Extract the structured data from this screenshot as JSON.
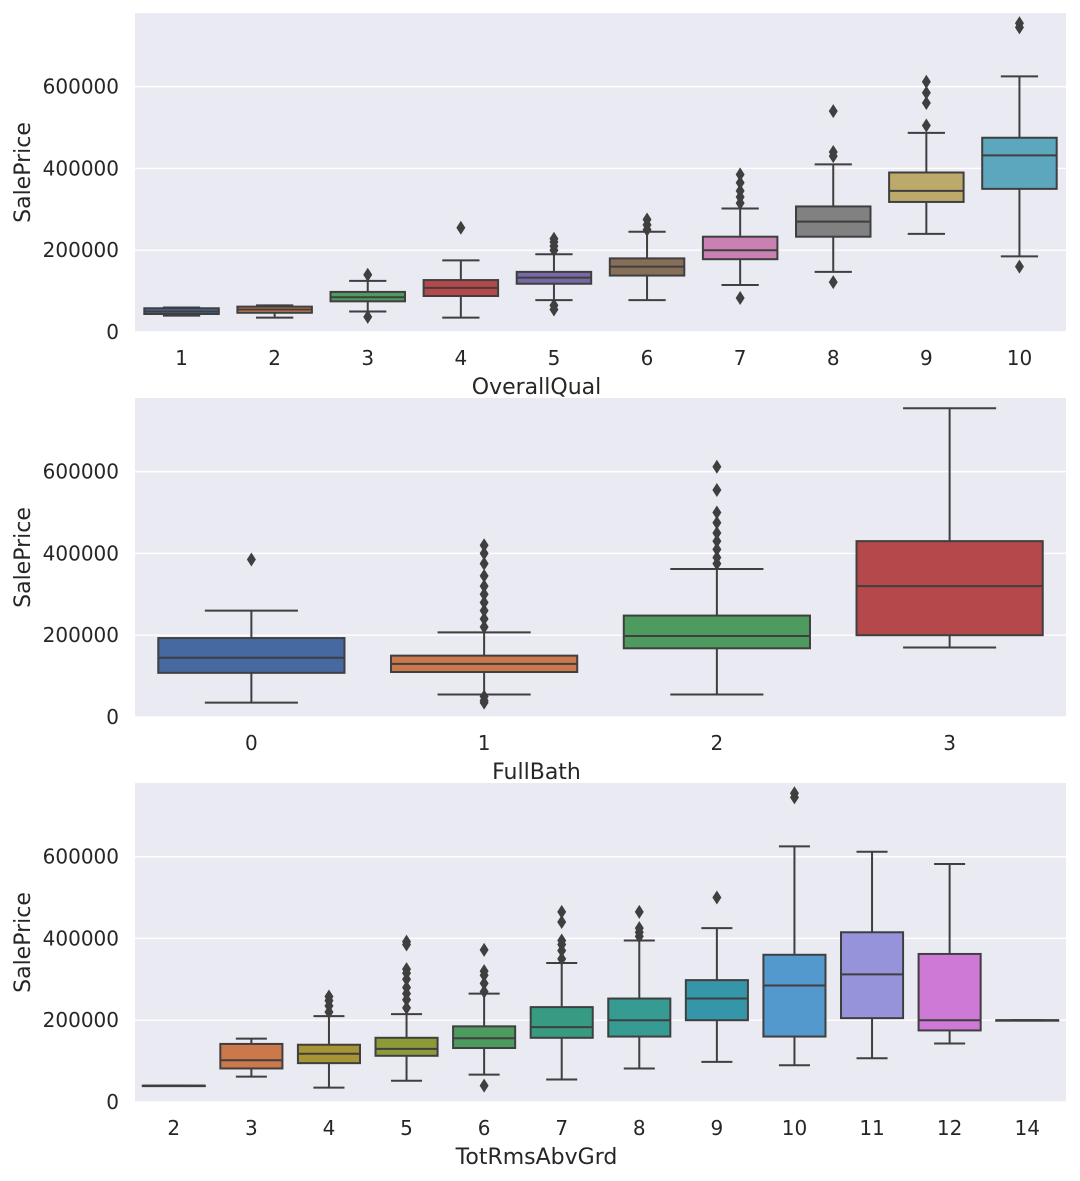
{
  "chart_data": [
    {
      "type": "box",
      "xlabel": "OverallQual",
      "ylabel": "SalePrice",
      "ylim": [
        0,
        780000
      ],
      "yticks": [
        0,
        200000,
        400000,
        600000
      ],
      "grid": true,
      "categories": [
        "1",
        "2",
        "3",
        "4",
        "5",
        "6",
        "7",
        "8",
        "9",
        "10"
      ],
      "colors": [
        "#4c72b0",
        "#dd8452",
        "#55a868",
        "#c44e52",
        "#8172b3",
        "#937860",
        "#da8bc3",
        "#8c8c8c",
        "#ccb974",
        "#64b5cd"
      ],
      "boxes": [
        {
          "min": 40000,
          "q1": 44000,
          "median": 50000,
          "q3": 58000,
          "max": 60000,
          "fliers": []
        },
        {
          "min": 35000,
          "q1": 47000,
          "median": 55000,
          "q3": 62000,
          "max": 65000,
          "fliers": []
        },
        {
          "min": 50000,
          "q1": 75000,
          "median": 85000,
          "q3": 98000,
          "max": 125000,
          "fliers": [
            140000,
            37000
          ]
        },
        {
          "min": 35000,
          "q1": 88000,
          "median": 108000,
          "q3": 127000,
          "max": 175000,
          "fliers": [
            255000
          ]
        },
        {
          "min": 78000,
          "q1": 118000,
          "median": 133000,
          "q3": 147000,
          "max": 190000,
          "fliers": [
            200000,
            210000,
            220000,
            228000,
            65000,
            55000
          ]
        },
        {
          "min": 78000,
          "q1": 138000,
          "median": 160000,
          "q3": 180000,
          "max": 245000,
          "fliers": [
            250000,
            262000,
            275000
          ]
        },
        {
          "min": 115000,
          "q1": 178000,
          "median": 200000,
          "q3": 233000,
          "max": 302000,
          "fliers": [
            315000,
            330000,
            345000,
            365000,
            385000,
            83000
          ]
        },
        {
          "min": 147000,
          "q1": 233000,
          "median": 270000,
          "q3": 307000,
          "max": 410000,
          "fliers": [
            430000,
            440000,
            540000,
            122000
          ]
        },
        {
          "min": 240000,
          "q1": 318000,
          "median": 345000,
          "q3": 390000,
          "max": 487000,
          "fliers": [
            505000,
            560000,
            585000,
            612000
          ]
        },
        {
          "min": 185000,
          "q1": 350000,
          "median": 432000,
          "q3": 475000,
          "max": 625000,
          "fliers": [
            745000,
            755000,
            160000
          ]
        }
      ]
    },
    {
      "type": "box",
      "xlabel": "FullBath",
      "ylabel": "SalePrice",
      "ylim": [
        0,
        780000
      ],
      "yticks": [
        0,
        200000,
        400000,
        600000
      ],
      "grid": true,
      "categories": [
        "0",
        "1",
        "2",
        "3"
      ],
      "colors": [
        "#4c72b0",
        "#dd8452",
        "#55a868",
        "#c44e52"
      ],
      "boxes": [
        {
          "min": 35000,
          "q1": 108000,
          "median": 145000,
          "q3": 193000,
          "max": 260000,
          "fliers": [
            385000
          ]
        },
        {
          "min": 55000,
          "q1": 110000,
          "median": 130000,
          "q3": 150000,
          "max": 207000,
          "fliers": [
            220000,
            240000,
            260000,
            280000,
            300000,
            320000,
            345000,
            375000,
            400000,
            420000,
            50000,
            40000,
            35000
          ]
        },
        {
          "min": 55000,
          "q1": 168000,
          "median": 198000,
          "q3": 248000,
          "max": 362000,
          "fliers": [
            375000,
            390000,
            410000,
            430000,
            450000,
            475000,
            500000,
            555000,
            612000
          ]
        },
        {
          "min": 170000,
          "q1": 200000,
          "median": 320000,
          "q3": 430000,
          "max": 755000,
          "fliers": []
        }
      ]
    },
    {
      "type": "box",
      "xlabel": "TotRmsAbvGrd",
      "ylabel": "SalePrice",
      "ylim": [
        0,
        780000
      ],
      "yticks": [
        0,
        200000,
        400000,
        600000
      ],
      "grid": true,
      "categories": [
        "2",
        "3",
        "4",
        "5",
        "6",
        "7",
        "8",
        "9",
        "10",
        "11",
        "12",
        "14"
      ],
      "colors": [
        "#4c72b0",
        "#dd8452",
        "#b5a23a",
        "#98a83c",
        "#55a868",
        "#3ba88c",
        "#3aa8a0",
        "#3aa3b8",
        "#5aa6e0",
        "#a3a0ee",
        "#e083e8",
        "#e27fb5"
      ],
      "boxes": [
        {
          "min": 40000,
          "q1": 40000,
          "median": 40000,
          "q3": 40000,
          "max": 40000,
          "fliers": []
        },
        {
          "min": 62000,
          "q1": 82000,
          "median": 102000,
          "q3": 142000,
          "max": 155000,
          "fliers": []
        },
        {
          "min": 35000,
          "q1": 95000,
          "median": 118000,
          "q3": 140000,
          "max": 210000,
          "fliers": [
            220000,
            235000,
            248000,
            258000
          ]
        },
        {
          "min": 52000,
          "q1": 113000,
          "median": 130000,
          "q3": 157000,
          "max": 215000,
          "fliers": [
            230000,
            250000,
            265000,
            280000,
            300000,
            315000,
            325000,
            385000,
            392000
          ]
        },
        {
          "min": 67000,
          "q1": 132000,
          "median": 156000,
          "q3": 185000,
          "max": 265000,
          "fliers": [
            270000,
            290000,
            310000,
            320000,
            372000,
            40000
          ]
        },
        {
          "min": 55000,
          "q1": 157000,
          "median": 183000,
          "q3": 232000,
          "max": 340000,
          "fliers": [
            350000,
            370000,
            385000,
            395000,
            440000,
            465000
          ]
        },
        {
          "min": 82000,
          "q1": 160000,
          "median": 200000,
          "q3": 253000,
          "max": 395000,
          "fliers": [
            405000,
            415000,
            425000,
            465000
          ]
        },
        {
          "min": 98000,
          "q1": 200000,
          "median": 253000,
          "q3": 298000,
          "max": 425000,
          "fliers": [
            500000
          ]
        },
        {
          "min": 90000,
          "q1": 160000,
          "median": 285000,
          "q3": 360000,
          "max": 625000,
          "fliers": [
            745000,
            755000
          ]
        },
        {
          "min": 107000,
          "q1": 205000,
          "median": 312000,
          "q3": 415000,
          "max": 612000,
          "fliers": []
        },
        {
          "min": 143000,
          "q1": 175000,
          "median": 200000,
          "q3": 362000,
          "max": 582000,
          "fliers": []
        },
        {
          "min": 200000,
          "q1": 200000,
          "median": 200000,
          "q3": 200000,
          "max": 200000,
          "fliers": []
        }
      ]
    }
  ]
}
